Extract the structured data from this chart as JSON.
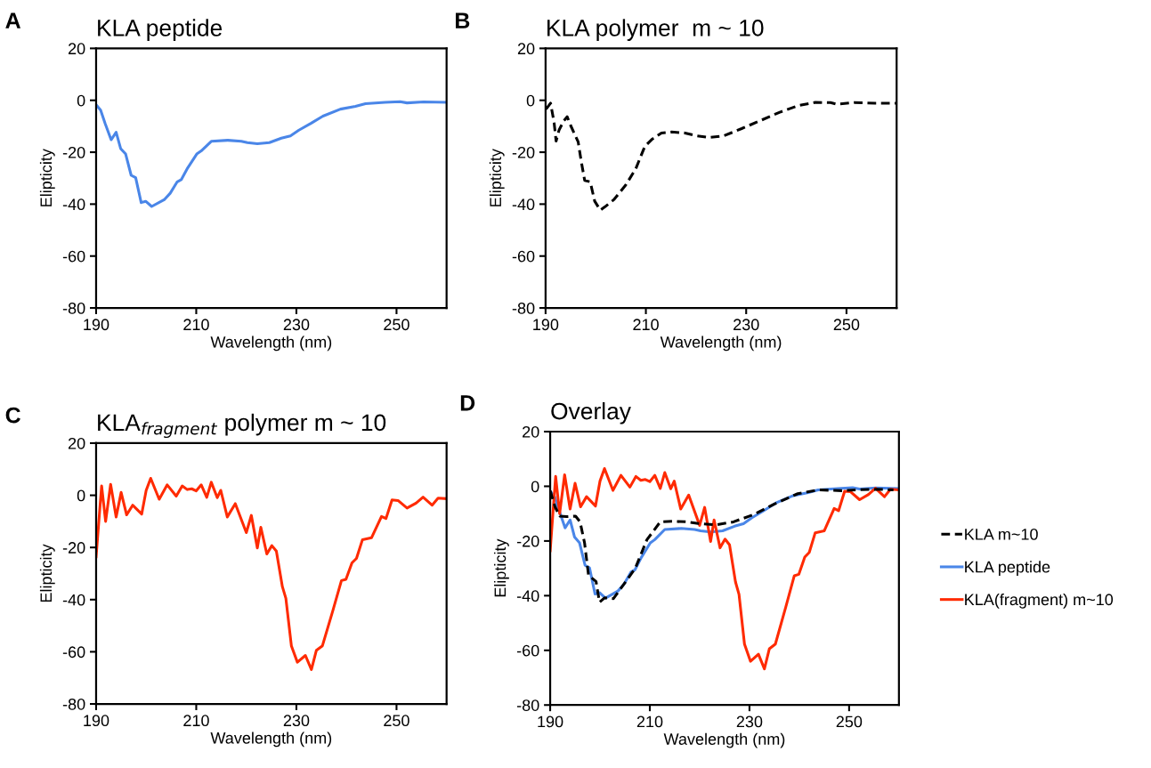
{
  "chart_data": [
    {
      "type": "line",
      "title": "KLA peptide",
      "xlabel": "Wavelength (nm)",
      "ylabel": "Elipticity",
      "annotations": [
        "A"
      ],
      "xlim": [
        190,
        260
      ],
      "xticks": [
        190,
        210,
        230,
        250
      ],
      "ylim": [
        -80,
        20
      ],
      "yticks": [
        -80,
        -60,
        -40,
        -20,
        0,
        20
      ],
      "grid": false,
      "legend": false,
      "series": [
        {
          "color": "#4a86e8",
          "line_style": "solid",
          "x": [
            190,
            190.9,
            191.8,
            193,
            194,
            194.9,
            195.9,
            197,
            197.9,
            199,
            199.9,
            201.1,
            203.6,
            204.8,
            206.2,
            207,
            208.3,
            210.1,
            211,
            213,
            216.3,
            219,
            220.2,
            222.2,
            224.6,
            227,
            228.8,
            230.5,
            232.9,
            235.3,
            238.8,
            241.8,
            243.8,
            247.7,
            250.7,
            252.1,
            255.4,
            259.8
          ],
          "values": [
            -1.7,
            -3.8,
            -8.9,
            -15.2,
            -12.3,
            -18.6,
            -20.7,
            -28.9,
            -29.8,
            -39.4,
            -38.9,
            -40.9,
            -38.3,
            -35.8,
            -31.4,
            -30.6,
            -26,
            -20.7,
            -19.5,
            -15.8,
            -15.4,
            -15.8,
            -16.3,
            -16.7,
            -16.3,
            -14.6,
            -13.7,
            -11.5,
            -8.9,
            -6.1,
            -3.4,
            -2.3,
            -1.3,
            -0.8,
            -0.5,
            -1,
            -0.6,
            -0.8
          ]
        }
      ]
    },
    {
      "type": "line",
      "title": "KLA polymer  m ~ 10",
      "xlabel": "Wavelength (nm)",
      "ylabel": "Elipticity",
      "annotations": [
        "B"
      ],
      "xlim": [
        190,
        260
      ],
      "xticks": [
        190,
        210,
        230,
        250
      ],
      "ylim": [
        -80,
        20
      ],
      "yticks": [
        -80,
        -60,
        -40,
        -20,
        0,
        20
      ],
      "grid": false,
      "legend": false,
      "series": [
        {
          "color": "#000000",
          "line_style": "dashed",
          "x": [
            190.1,
            191,
            191.7,
            192.1,
            192.7,
            193.6,
            194.3,
            195,
            196.5,
            197.1,
            197.8,
            198.9,
            199.8,
            200.9,
            201.8,
            203.6,
            206,
            208,
            209.8,
            211.3,
            213.1,
            215.1,
            217.8,
            220.2,
            222.5,
            225.5,
            229.1,
            232.6,
            236.7,
            240.3,
            243.8,
            246.8,
            248,
            251.5,
            255.7,
            259.8
          ],
          "values": [
            -3.4,
            -1.1,
            -8.6,
            -15.7,
            -11.4,
            -8,
            -6.3,
            -9.7,
            -16,
            -23.4,
            -30.9,
            -31.4,
            -38.9,
            -42.3,
            -41.1,
            -38.3,
            -32.6,
            -26.3,
            -17.7,
            -14.9,
            -12.6,
            -12.2,
            -12.6,
            -13.7,
            -14.3,
            -13.7,
            -10.9,
            -8,
            -4.6,
            -2.1,
            -0.8,
            -0.9,
            -1.5,
            -0.9,
            -1.1,
            -1.1
          ]
        }
      ]
    },
    {
      "type": "line",
      "title": "KLA$_{fragment}$ polymer m ~ 10",
      "xlabel": "Wavelength (nm)",
      "ylabel": "Elipticity",
      "annotations": [
        "C"
      ],
      "xlim": [
        190,
        260
      ],
      "xticks": [
        190,
        210,
        230,
        250
      ],
      "ylim": [
        -80,
        20
      ],
      "yticks": [
        -80,
        -60,
        -40,
        -20,
        0,
        20
      ],
      "grid": false,
      "legend": false,
      "series": [
        {
          "color": "#ff2a00",
          "line_style": "solid",
          "x": [
            190,
            190.5,
            191.1,
            191.9,
            192.9,
            194,
            195,
            196.1,
            197.3,
            199.1,
            200,
            200.9,
            202.6,
            204.2,
            206,
            207.2,
            208.2,
            209.1,
            210,
            211,
            212.1,
            213,
            214.2,
            214.9,
            216.2,
            217.8,
            220,
            221,
            222.2,
            222.9,
            224.1,
            225.1,
            226,
            227.2,
            227.9,
            229,
            230.2,
            231.8,
            233,
            234,
            235.2,
            237.3,
            239,
            239.9,
            241.1,
            242,
            243.2,
            245,
            247,
            247.9,
            249.1,
            250.3,
            252.1,
            253.9,
            255.3,
            257.1,
            258.3,
            260
          ],
          "values": [
            -23.6,
            -11.1,
            3.6,
            -10,
            4.2,
            -8.3,
            1.1,
            -7.5,
            -3.8,
            -7.2,
            1.9,
            6.5,
            -1.5,
            4,
            -0.3,
            3.6,
            2.2,
            2.5,
            1.7,
            4,
            -0.8,
            5,
            -0.9,
            1.9,
            -8.3,
            -3.2,
            -14.3,
            -7.7,
            -20.2,
            -12.3,
            -22.5,
            -19.3,
            -21.4,
            -35,
            -39.5,
            -57.7,
            -64,
            -61.4,
            -66.8,
            -59.4,
            -57.7,
            -44.1,
            -32.7,
            -32.2,
            -25.9,
            -24.2,
            -17,
            -16.3,
            -8.1,
            -8.9,
            -1.8,
            -2,
            -4.9,
            -3,
            -0.7,
            -3.8,
            -1.1,
            -1.3
          ]
        }
      ]
    },
    {
      "type": "line",
      "title": "Overlay",
      "xlabel": "Wavelength (nm)",
      "ylabel": "Elipticity",
      "annotations": [
        "D"
      ],
      "xlim": [
        190,
        260
      ],
      "xticks": [
        190,
        210,
        230,
        250
      ],
      "ylim": [
        -80,
        20
      ],
      "yticks": [
        -80,
        -60,
        -40,
        -20,
        0,
        20
      ],
      "grid": false,
      "legend": "right",
      "series": [
        {
          "name": "KLA m~10",
          "color": "#000000",
          "line_style": "dashed",
          "x": [
            190,
            191,
            191.9,
            193.3,
            195.1,
            196,
            196.9,
            197.7,
            199.2,
            199.9,
            200.9,
            202.7,
            205,
            207.1,
            209.4,
            212.1,
            214.5,
            217.4,
            219.7,
            223.3,
            226.8,
            230.9,
            235,
            239.7,
            243.8,
            248.5,
            251.4,
            255.5,
            258.9
          ],
          "values": [
            -1.6,
            -7.6,
            -10.9,
            -11.1,
            -10.9,
            -13,
            -20.7,
            -32.6,
            -34.8,
            -42.4,
            -40.8,
            -41.1,
            -35.3,
            -29.9,
            -19.6,
            -13,
            -12.8,
            -13,
            -13.6,
            -14.1,
            -13,
            -10.3,
            -6.5,
            -2.7,
            -1.3,
            -1.6,
            -1.3,
            -1.1,
            -1.3
          ]
        },
        {
          "name": "KLA peptide",
          "color": "#4a86e8",
          "line_style": "solid",
          "x": [
            190,
            190.9,
            191.8,
            193,
            194,
            194.9,
            195.9,
            197,
            197.9,
            199,
            199.9,
            201.1,
            203.6,
            204.8,
            206.2,
            207,
            208.3,
            210.1,
            211,
            213,
            216.3,
            219,
            220.2,
            222.2,
            224.6,
            227,
            228.8,
            230.5,
            232.9,
            235.3,
            238.8,
            241.8,
            243.8,
            247.7,
            250.7,
            252.1,
            255.4,
            259.8
          ],
          "values": [
            -1.7,
            -3.8,
            -8.9,
            -15.2,
            -12.3,
            -18.6,
            -20.7,
            -28.9,
            -29.8,
            -39.4,
            -38.9,
            -40.9,
            -38.3,
            -35.8,
            -31.4,
            -30.6,
            -26,
            -20.7,
            -19.5,
            -15.8,
            -15.4,
            -15.8,
            -16.3,
            -16.7,
            -16.3,
            -14.6,
            -13.7,
            -11.5,
            -8.9,
            -6.1,
            -3.4,
            -2.3,
            -1.3,
            -0.8,
            -0.5,
            -1,
            -0.6,
            -0.8
          ]
        },
        {
          "name": "KLA(fragment) m~10",
          "color": "#ff2a00",
          "line_style": "solid",
          "x": [
            190,
            190.5,
            191.1,
            191.9,
            192.9,
            194,
            195,
            196.1,
            197.3,
            199.1,
            200,
            200.9,
            202.6,
            204.2,
            206,
            207.2,
            208.2,
            209.1,
            210,
            211,
            212.1,
            213,
            214.2,
            214.9,
            216.2,
            217.8,
            220,
            221,
            222.2,
            222.9,
            224.1,
            225.1,
            226,
            227.2,
            227.9,
            229,
            230.2,
            231.8,
            233,
            234,
            235.2,
            237.3,
            239,
            239.9,
            241.1,
            242,
            243.2,
            245,
            247,
            247.9,
            249.1,
            250.3,
            252.1,
            253.9,
            255.3,
            257.1,
            258.3,
            260
          ],
          "values": [
            -23.6,
            -11.1,
            3.6,
            -10,
            4.2,
            -8.3,
            1.1,
            -7.5,
            -3.8,
            -7.2,
            1.9,
            6.5,
            -1.5,
            4,
            -0.3,
            3.6,
            2.2,
            2.5,
            1.7,
            4,
            -0.8,
            5,
            -0.9,
            1.9,
            -8.3,
            -3.2,
            -14.3,
            -7.7,
            -20.2,
            -12.3,
            -22.5,
            -19.3,
            -21.4,
            -35,
            -39.5,
            -57.7,
            -64,
            -61.4,
            -66.8,
            -59.4,
            -57.7,
            -44.1,
            -32.7,
            -32.2,
            -25.9,
            -24.2,
            -17,
            -16.3,
            -8.1,
            -8.9,
            -1.8,
            -2,
            -4.9,
            -3,
            -0.7,
            -3.8,
            -1.1,
            -1.3
          ]
        }
      ]
    }
  ]
}
